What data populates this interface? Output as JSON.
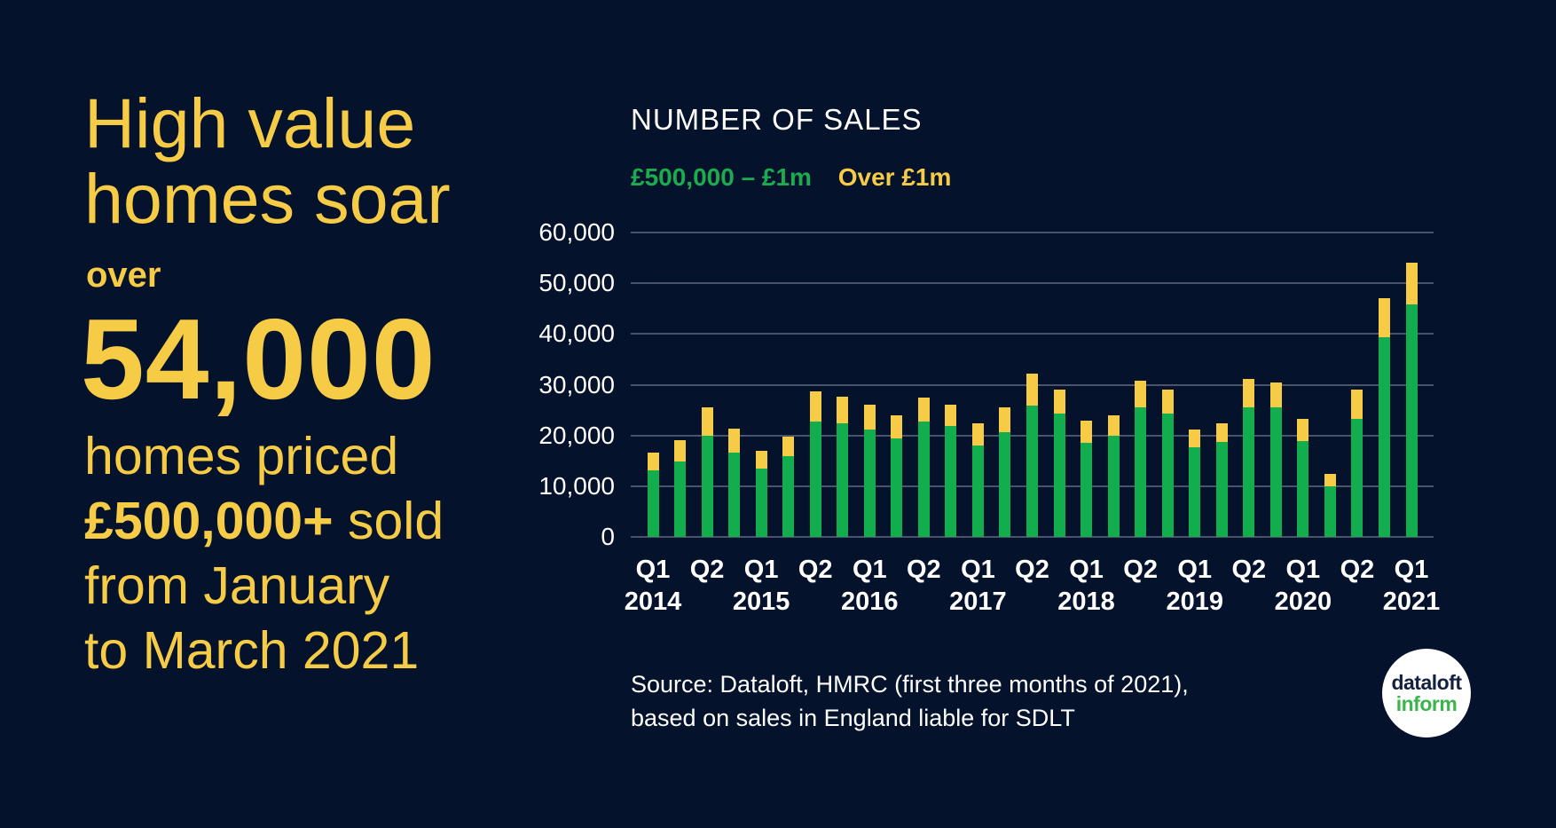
{
  "colors": {
    "background": "#04122C",
    "yellow": "#F6CB46",
    "green": "#12AD4C",
    "grid": "#49536B",
    "text_white": "#FFFFFF",
    "logo_navy": "#13203F",
    "logo_green": "#3AB54A"
  },
  "left_panel": {
    "headline_line1": "High value",
    "headline_line2": "homes soar",
    "stat_prefix": "over",
    "stat_value": "54,000",
    "description_lines": [
      {
        "text": "homes priced"
      },
      {
        "bold": "£500,000+",
        "text": " sold"
      },
      {
        "text": "from January"
      },
      {
        "text": "to March 2021"
      }
    ]
  },
  "chart_data": {
    "type": "bar",
    "stacked": true,
    "title": "NUMBER OF SALES",
    "legend_position": "top-left",
    "legend": [
      {
        "label": "£500,000 – £1m",
        "color": "#1CAC50"
      },
      {
        "label": "Over £1m",
        "color": "#F6CB46"
      }
    ],
    "ylim": [
      0,
      60000
    ],
    "grid": "horizontal",
    "ytick_values": [
      0,
      10000,
      20000,
      30000,
      40000,
      50000,
      60000
    ],
    "ytick_labels": [
      "0",
      "10,000",
      "20,000",
      "30,000",
      "40,000",
      "50,000",
      "60,000"
    ],
    "xtick_quarters": [
      "Q1",
      "",
      "Q2",
      "",
      "Q1",
      "",
      "Q2",
      "",
      "Q1",
      "",
      "Q2",
      "",
      "Q1",
      "",
      "Q2",
      "",
      "Q1",
      "",
      "Q2",
      "",
      "Q1",
      "",
      "Q2",
      "",
      "Q1",
      "",
      "Q2",
      "",
      "Q1"
    ],
    "xtick_years": [
      "2014",
      "",
      "",
      "",
      "2015",
      "",
      "",
      "",
      "2016",
      "",
      "",
      "",
      "2017",
      "",
      "",
      "",
      "2018",
      "",
      "",
      "",
      "2019",
      "",
      "",
      "",
      "2020",
      "",
      "",
      "",
      "2021"
    ],
    "series": [
      {
        "name": "£500,000 – £1m",
        "color": "#12AD4C",
        "values": [
          13100,
          14800,
          19900,
          16700,
          13400,
          16000,
          22800,
          22400,
          21200,
          19400,
          22700,
          21800,
          18100,
          20700,
          25900,
          24300,
          18500,
          20000,
          25600,
          24300,
          17700,
          18800,
          25600,
          25500,
          18900,
          9900,
          23300,
          39400,
          45900
        ]
      },
      {
        "name": "Over £1m",
        "color": "#F6CB46",
        "values": [
          3600,
          4200,
          5700,
          4600,
          3600,
          3800,
          5900,
          5300,
          4800,
          4600,
          4700,
          4200,
          4300,
          4800,
          6300,
          4700,
          4500,
          3900,
          5200,
          4800,
          3500,
          3600,
          5500,
          4900,
          4400,
          2600,
          5700,
          7600,
          8100
        ]
      }
    ]
  },
  "source": {
    "line1": "Source: Dataloft, HMRC (first three months of 2021),",
    "line2": "based on sales in England liable for SDLT"
  },
  "logo": {
    "line1": "dataloft",
    "line2": "inform"
  }
}
